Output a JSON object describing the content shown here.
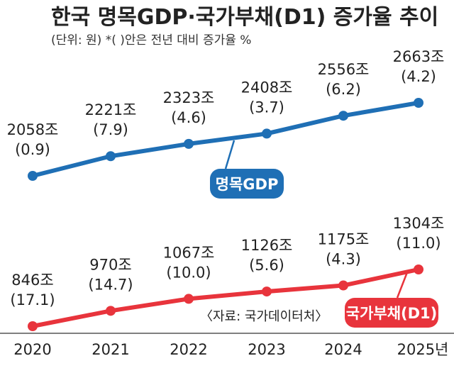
{
  "chart_data": {
    "type": "line",
    "title": "한국 명목GDP·국가부채(D1) 증가율 추이",
    "subtitle": "(단위: 원)  *( )안은 전년 대비 증가율 %",
    "x": [
      "2020",
      "2021",
      "2022",
      "2023",
      "2024",
      "2025년"
    ],
    "series": [
      {
        "name": "명목GDP",
        "color": "#1f6fb5",
        "values": [
          2058,
          2221,
          2323,
          2408,
          2556,
          2663
        ],
        "labels": [
          "2058조",
          "2221조",
          "2323조",
          "2408조",
          "2556조",
          "2663조"
        ],
        "growth": [
          "(0.9)",
          "(7.9)",
          "(4.6)",
          "(3.7)",
          "(6.2)",
          "(4.2)"
        ]
      },
      {
        "name": "국가부채(D1)",
        "color": "#e8343c",
        "values": [
          846,
          970,
          1067,
          1126,
          1175,
          1304
        ],
        "labels": [
          "846조",
          "970조",
          "1067조",
          "1126조",
          "1175조",
          "1304조"
        ],
        "growth": [
          "(17.1)",
          "(14.7)",
          "(10.0)",
          "(5.6)",
          "(4.3)",
          "(11.0)"
        ]
      }
    ],
    "source": "〈자료: 국가데이터처〉"
  }
}
